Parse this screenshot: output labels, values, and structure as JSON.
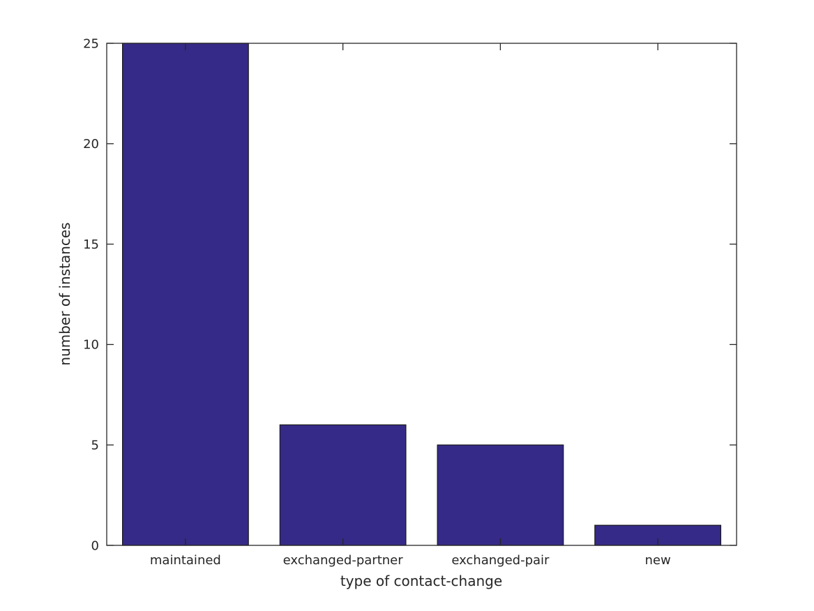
{
  "chart_data": {
    "type": "bar",
    "title": "",
    "categories": [
      "maintained",
      "exchanged-partner",
      "exchanged-pair",
      "new"
    ],
    "values": [
      25,
      6,
      5,
      1
    ],
    "xlabel": "type of contact-change",
    "ylabel": "number of instances",
    "yticks": [
      0,
      5,
      10,
      15,
      20,
      25
    ],
    "ylim": [
      0,
      25
    ],
    "grid": false,
    "legend": "none",
    "bar_width_fraction": 0.8,
    "colors": {
      "bar_fill": "#352A87",
      "bar_edge": "#1a1a1a",
      "axis": "#262626",
      "text": "#262626",
      "background": "#ffffff"
    }
  }
}
